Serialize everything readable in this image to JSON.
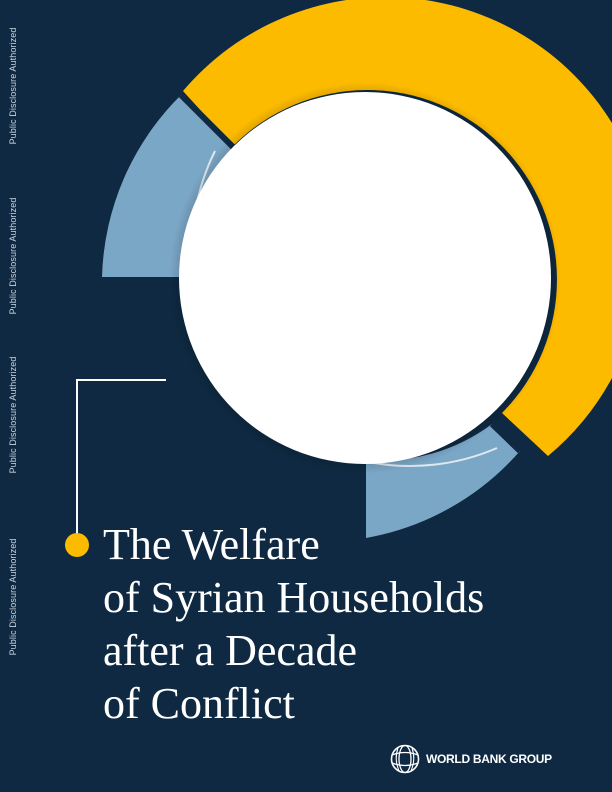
{
  "side_labels": [
    "Public Disclosure Authorized",
    "Public Disclosure Authorized",
    "Public Disclosure Authorized",
    "Public Disclosure Authorized"
  ],
  "title_lines": [
    "The Welfare",
    "of Syrian Households",
    "after a Decade",
    "of Conflict"
  ],
  "publisher": "WORLD BANK GROUP",
  "logo_icon": "globe-icon",
  "colors": {
    "background": "#0e2941",
    "accent_yellow": "#fdbb00",
    "accent_blue": "#7ba7c7",
    "circle_white": "#ffffff"
  }
}
